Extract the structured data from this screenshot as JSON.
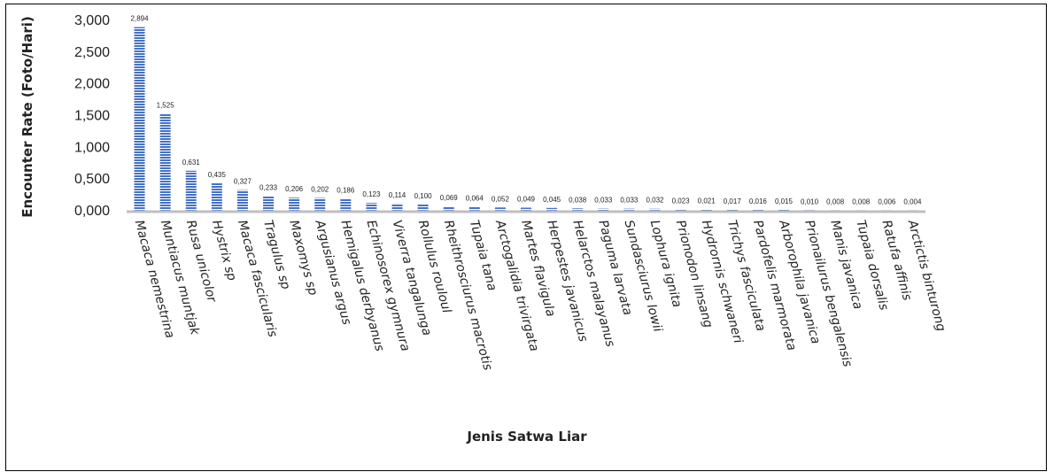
{
  "chart_data": {
    "type": "bar",
    "title": "",
    "xlabel": "Jenis Satwa Liar",
    "ylabel": "Encounter Rate (Foto/Hari)",
    "ylim": [
      0,
      3
    ],
    "yticks": [
      "0,000",
      "0,500",
      "1,000",
      "1,500",
      "2,000",
      "2,500",
      "3,000"
    ],
    "ytick_values": [
      0,
      0.5,
      1,
      1.5,
      2,
      2.5,
      3
    ],
    "grid": false,
    "legend": "none",
    "bar_color": "#4472C4",
    "categories": [
      "Macaca nemestrina",
      "Muntiacus muntjak",
      "Rusa unicolor",
      "Hystrix sp",
      "Macaca fascicularis",
      "Tragulus sp",
      "Maxomys sp",
      "Argusianus argus",
      "Hemigalus derbyanus",
      "Echinosorex gymnura",
      "Viverra tangalunga",
      "Rollulus rouloul",
      "Rheithrosciurus macrotis",
      "Tupaia tana",
      "Arctogalidia trivirgata",
      "Martes flavigula",
      "Herpestes javanicus",
      "Helarctos malayanus",
      "Paguma larvata",
      "Sundasciurus lowii",
      "Lophura ignita",
      "Prionodon linsang",
      "Hydrornis schwaneri",
      "Trichys fasciculata",
      "Pardofelis marmorata",
      "Arborophila javanica",
      "Prionailurus bengalensis",
      "Manis javanica",
      "Tupaia dorsalis",
      "Ratufa affinis",
      "Arctictis binturong"
    ],
    "values": [
      2.894,
      1.525,
      0.631,
      0.435,
      0.327,
      0.233,
      0.206,
      0.202,
      0.186,
      0.123,
      0.114,
      0.1,
      0.069,
      0.064,
      0.052,
      0.049,
      0.045,
      0.038,
      0.033,
      0.033,
      0.032,
      0.023,
      0.021,
      0.017,
      0.016,
      0.015,
      0.01,
      0.008,
      0.008,
      0.006,
      0.004
    ],
    "data_labels": [
      "2,894",
      "1,525",
      "0,631",
      "0,435",
      "0,327",
      "0,233",
      "0,206",
      "0,202",
      "0,186",
      "0,123",
      "0,114",
      "0,100",
      "0,069",
      "0,064",
      "0,052",
      "0,049",
      "0,045",
      "0,038",
      "0,033",
      "0,033",
      "0,032",
      "0,023",
      "0,021",
      "0,017",
      "0,016",
      "0,015",
      "0,010",
      "0,008",
      "0,008",
      "0,006",
      "0,004"
    ]
  }
}
